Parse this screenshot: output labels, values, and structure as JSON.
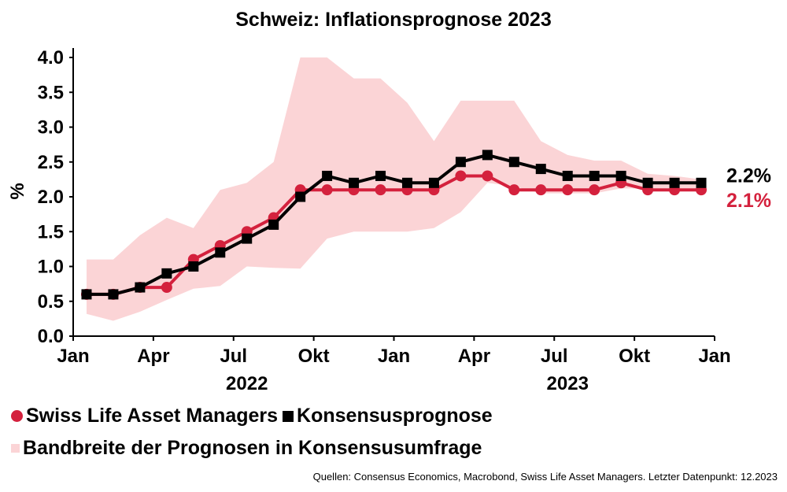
{
  "chart_data": {
    "type": "line",
    "title": "Schweiz: Inflationsprognose 2023",
    "ylabel": "%",
    "ylim": [
      0,
      4.0
    ],
    "yticks": [
      "0.0",
      "0.5",
      "1.0",
      "1.5",
      "2.0",
      "2.5",
      "3.0",
      "3.5",
      "4.0"
    ],
    "xticks": [
      "Jan",
      "Apr",
      "Jul",
      "Okt",
      "Jan",
      "Apr",
      "Jul",
      "Okt",
      "Jan"
    ],
    "year_labels": [
      "2022",
      "2023"
    ],
    "x": [
      "2022-01",
      "2022-02",
      "2022-03",
      "2022-04",
      "2022-05",
      "2022-06",
      "2022-07",
      "2022-08",
      "2022-09",
      "2022-10",
      "2022-11",
      "2022-12",
      "2023-01",
      "2023-02",
      "2023-03",
      "2023-04",
      "2023-05",
      "2023-06",
      "2023-07",
      "2023-08",
      "2023-09",
      "2023-10",
      "2023-11",
      "2023-12"
    ],
    "series": [
      {
        "name": "Swiss Life Asset Managers",
        "color": "#d4213d",
        "marker": "circle",
        "values": [
          0.6,
          0.6,
          0.7,
          0.7,
          1.1,
          1.3,
          1.5,
          1.7,
          2.1,
          2.1,
          2.1,
          2.1,
          2.1,
          2.1,
          2.3,
          2.3,
          2.1,
          2.1,
          2.1,
          2.1,
          2.2,
          2.1,
          2.1,
          2.1
        ],
        "end_label": "2.1%"
      },
      {
        "name": "Konsensusprognose",
        "color": "#000000",
        "marker": "square",
        "values": [
          0.6,
          0.6,
          0.7,
          0.9,
          1.0,
          1.2,
          1.4,
          1.6,
          2.0,
          2.3,
          2.2,
          2.3,
          2.2,
          2.2,
          2.5,
          2.6,
          2.5,
          2.4,
          2.3,
          2.3,
          2.3,
          2.2,
          2.2,
          2.2
        ],
        "end_label": "2.2%"
      }
    ],
    "band": {
      "name": "Bandbreite der Prognosen in Konsensusumfrage",
      "color": "#fbd4d6",
      "upper": [
        1.1,
        1.1,
        1.45,
        1.7,
        1.55,
        2.1,
        2.2,
        2.5,
        4.0,
        4.0,
        3.7,
        3.7,
        3.35,
        2.8,
        3.38,
        3.38,
        3.38,
        2.8,
        2.6,
        2.52,
        2.52,
        2.33,
        2.3,
        2.25
      ],
      "lower": [
        0.32,
        0.22,
        0.35,
        0.52,
        0.68,
        0.72,
        1.0,
        0.98,
        0.97,
        1.4,
        1.5,
        1.5,
        1.5,
        1.55,
        1.78,
        2.2,
        2.15,
        2.05,
        2.05,
        2.05,
        2.12,
        2.12,
        2.12,
        2.12
      ]
    },
    "grid": false,
    "legend_placement": "bottom-left"
  },
  "legend": {
    "swiss_life": "Swiss Life Asset Managers",
    "consensus": "Konsensusprognose",
    "band": "Bandbreite der Prognosen in Konsensusumfrage"
  },
  "source": "Quellen: Consensus Economics, Macrobond, Swiss Life Asset Managers. Letzter Datenpunkt: 12.2023"
}
